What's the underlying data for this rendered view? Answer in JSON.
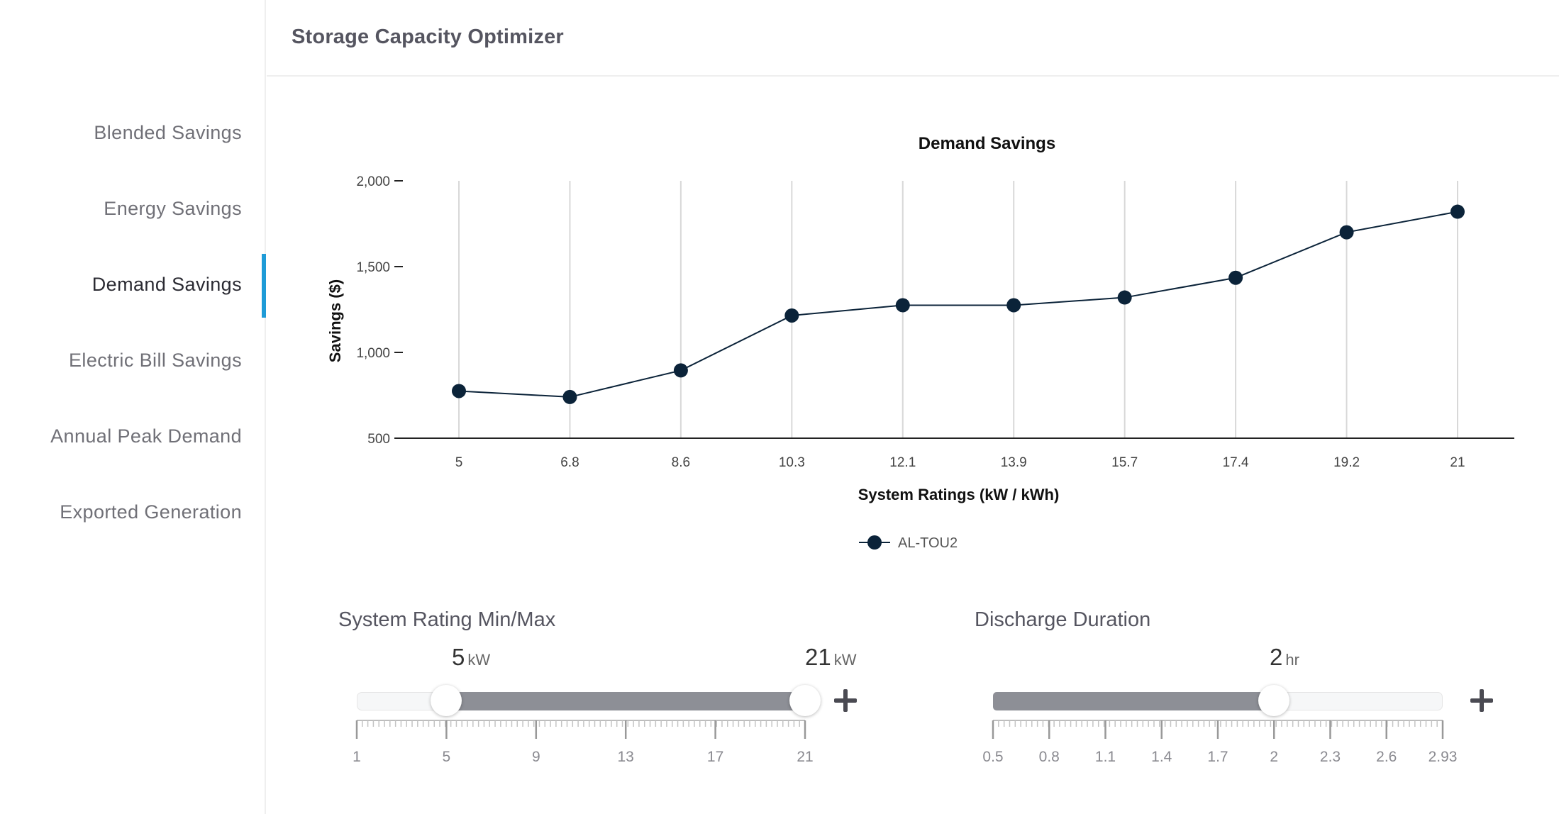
{
  "app": {
    "title": "Storage Capacity Optimizer"
  },
  "sidebar": {
    "items": [
      {
        "label": "Blended Savings",
        "name": "sidebar-item-blended-savings",
        "active": false
      },
      {
        "label": "Energy Savings",
        "name": "sidebar-item-energy-savings",
        "active": false
      },
      {
        "label": "Demand Savings",
        "name": "sidebar-item-demand-savings",
        "active": true
      },
      {
        "label": "Electric Bill Savings",
        "name": "sidebar-item-electric-bill-savings",
        "active": false
      },
      {
        "label": "Annual Peak Demand",
        "name": "sidebar-item-annual-peak-demand",
        "active": false
      },
      {
        "label": "Exported Generation",
        "name": "sidebar-item-exported-generation",
        "active": false
      }
    ],
    "active_color": "#1e9bd7"
  },
  "chart_data": {
    "type": "line",
    "title": "Demand Savings",
    "xlabel": "System Ratings (kW / kWh)",
    "ylabel": "Savings ($)",
    "categories": [
      "5",
      "6.8",
      "8.6",
      "10.3",
      "12.1",
      "13.9",
      "15.7",
      "17.4",
      "19.2",
      "21"
    ],
    "series": [
      {
        "name": "AL-TOU2",
        "values": [
          775,
          740,
          895,
          1215,
          1275,
          1275,
          1320,
          1435,
          1700,
          1820
        ],
        "color": "#0b2339"
      }
    ],
    "ylim": [
      500,
      2000
    ],
    "yticks": [
      "2,000",
      "1,500",
      "1,000",
      "500"
    ],
    "ytick_values": [
      2000,
      1500,
      1000,
      500
    ],
    "grid": "vertical",
    "legend": "bottom-center"
  },
  "controls": {
    "system_rating": {
      "title": "System Rating Min/Max",
      "min_value": "5",
      "max_value": "21",
      "unit": "kW",
      "range_min": 1,
      "range_max": 21,
      "tick_labels": [
        "1",
        "5",
        "9",
        "13",
        "17",
        "21"
      ]
    },
    "discharge_duration": {
      "title": "Discharge Duration",
      "value": "2",
      "unit": "hr",
      "range_min": 0.5,
      "range_max": 2.93,
      "tick_labels": [
        "0.5",
        "0.8",
        "1.1",
        "1.4",
        "1.7",
        "2",
        "2.3",
        "2.6",
        "2.93"
      ]
    }
  }
}
